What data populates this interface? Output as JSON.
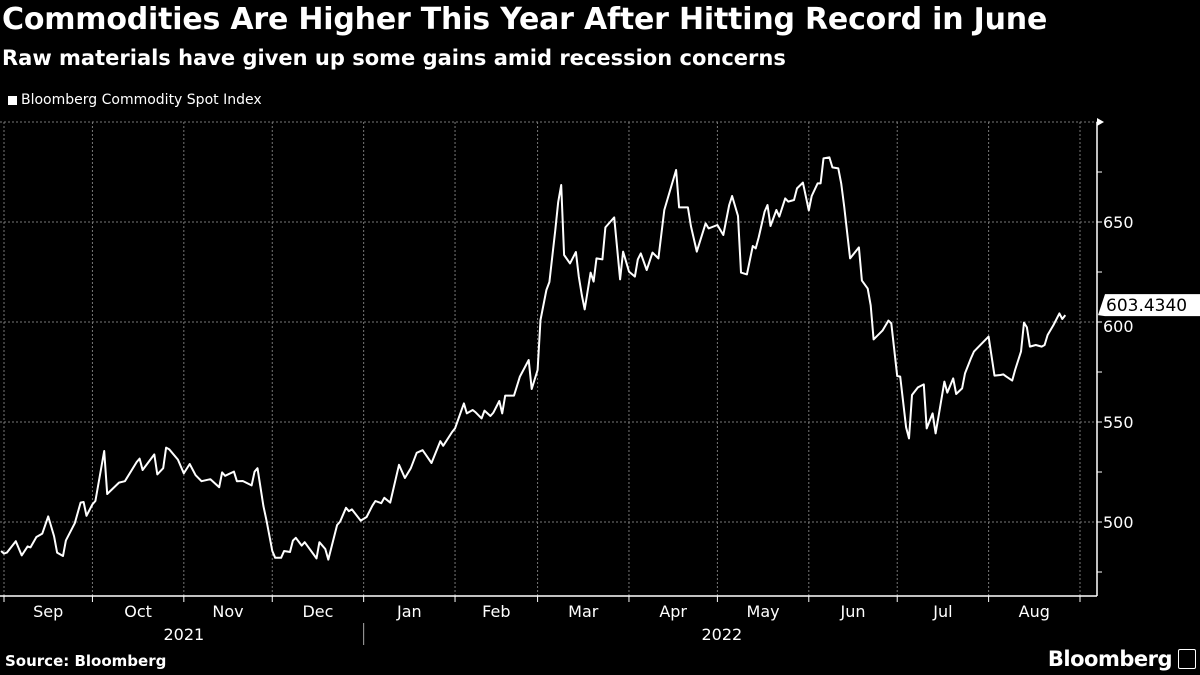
{
  "header": {
    "title": "Commodities Are Higher This Year After Hitting Record in June",
    "subtitle": "Raw materials have given up some gains amid recession concerns"
  },
  "footer": {
    "source": "Source: Bloomberg",
    "logo": "Bloomberg"
  },
  "chart_data": {
    "type": "line",
    "title": "Commodities Are Higher This Year After Hitting Record in June",
    "subtitle": "Raw materials have given up some gains amid recession concerns",
    "legend": "top-left",
    "grid": true,
    "line_color": "#ffffff",
    "background": "#000000",
    "xlim": [
      "2021-08-31",
      "2022-09-05"
    ],
    "ylim": [
      463,
      700
    ],
    "y_axis_side": "right",
    "y_ticks": [
      500,
      550,
      600,
      650
    ],
    "y_tick_labels": [
      "500",
      "550",
      "600",
      "650"
    ],
    "x_ticks": [
      "2021-09-01",
      "2021-10-01",
      "2021-11-01",
      "2021-12-01",
      "2022-01-01",
      "2022-02-01",
      "2022-03-01",
      "2022-04-01",
      "2022-05-01",
      "2022-06-01",
      "2022-07-01",
      "2022-08-01",
      "2022-09-01"
    ],
    "x_tick_labels": [
      "Sep",
      "Oct",
      "Nov",
      "Dec",
      "Jan",
      "Feb",
      "Mar",
      "Apr",
      "May",
      "Jun",
      "Jul",
      "Aug"
    ],
    "year_labels": [
      {
        "label": "2021",
        "from": "2021-09-01",
        "to": "2022-01-01"
      },
      {
        "label": "2022",
        "from": "2022-01-01",
        "to": "2022-09-01"
      }
    ],
    "last_value_label": "603.4340",
    "series": [
      {
        "name": "Bloomberg Commodity Spot Index",
        "points": [
          [
            "2021-08-31",
            485.5
          ],
          [
            "2021-09-01",
            484.2
          ],
          [
            "2021-09-02",
            484.7
          ],
          [
            "2021-09-05",
            490.4
          ],
          [
            "2021-09-07",
            483.3
          ],
          [
            "2021-09-09",
            487.8
          ],
          [
            "2021-09-10",
            487.3
          ],
          [
            "2021-09-12",
            492.5
          ],
          [
            "2021-09-14",
            494.2
          ],
          [
            "2021-09-16",
            502.8
          ],
          [
            "2021-09-18",
            492.8
          ],
          [
            "2021-09-19",
            484.7
          ],
          [
            "2021-09-21",
            483.0
          ],
          [
            "2021-09-22",
            490.8
          ],
          [
            "2021-09-25",
            499.4
          ],
          [
            "2021-09-27",
            509.7
          ],
          [
            "2021-09-28",
            510.0
          ],
          [
            "2021-09-29",
            503.1
          ],
          [
            "2021-10-01",
            508.8
          ],
          [
            "2021-10-02",
            510.5
          ],
          [
            "2021-10-05",
            535.5
          ],
          [
            "2021-10-06",
            514.0
          ],
          [
            "2021-10-10",
            519.7
          ],
          [
            "2021-10-12",
            520.4
          ],
          [
            "2021-10-16",
            530.0
          ],
          [
            "2021-10-17",
            531.7
          ],
          [
            "2021-10-18",
            526.0
          ],
          [
            "2021-10-22",
            533.8
          ],
          [
            "2021-10-23",
            523.8
          ],
          [
            "2021-10-25",
            526.9
          ],
          [
            "2021-10-26",
            537.2
          ],
          [
            "2021-10-27",
            536.4
          ],
          [
            "2021-10-30",
            531.2
          ],
          [
            "2021-11-01",
            524.3
          ],
          [
            "2021-11-03",
            529.0
          ],
          [
            "2021-11-05",
            523.4
          ],
          [
            "2021-11-07",
            520.4
          ],
          [
            "2021-11-10",
            521.4
          ],
          [
            "2021-11-13",
            517.4
          ],
          [
            "2021-11-14",
            524.8
          ],
          [
            "2021-11-15",
            523.1
          ],
          [
            "2021-11-18",
            525.2
          ],
          [
            "2021-11-19",
            520.4
          ],
          [
            "2021-11-21",
            520.5
          ],
          [
            "2021-11-24",
            518.3
          ],
          [
            "2021-11-25",
            525.2
          ],
          [
            "2021-11-26",
            526.9
          ],
          [
            "2021-11-28",
            508.0
          ],
          [
            "2021-11-29",
            501.0
          ],
          [
            "2021-12-01",
            485.5
          ],
          [
            "2021-12-02",
            482.1
          ],
          [
            "2021-12-04",
            482.1
          ],
          [
            "2021-12-05",
            485.5
          ],
          [
            "2021-12-07",
            485.0
          ],
          [
            "2021-12-08",
            490.7
          ],
          [
            "2021-12-09",
            492.1
          ],
          [
            "2021-12-11",
            488.2
          ],
          [
            "2021-12-12",
            489.9
          ],
          [
            "2021-12-16",
            481.8
          ],
          [
            "2021-12-17",
            489.9
          ],
          [
            "2021-12-19",
            486.5
          ],
          [
            "2021-12-20",
            481.2
          ],
          [
            "2021-12-23",
            498.5
          ],
          [
            "2021-12-24",
            500.2
          ],
          [
            "2021-12-26",
            507.1
          ],
          [
            "2021-12-27",
            505.4
          ],
          [
            "2021-12-28",
            506.3
          ],
          [
            "2021-12-31",
            500.7
          ],
          [
            "2022-01-02",
            502.5
          ],
          [
            "2022-01-04",
            508.3
          ],
          [
            "2022-01-05",
            510.5
          ],
          [
            "2022-01-07",
            509.4
          ],
          [
            "2022-01-08",
            512.1
          ],
          [
            "2022-01-10",
            509.7
          ],
          [
            "2022-01-13",
            528.6
          ],
          [
            "2022-01-15",
            522.0
          ],
          [
            "2022-01-17",
            526.9
          ],
          [
            "2022-01-19",
            534.6
          ],
          [
            "2022-01-21",
            535.9
          ],
          [
            "2022-01-22",
            533.8
          ],
          [
            "2022-01-24",
            529.5
          ],
          [
            "2022-01-27",
            540.4
          ],
          [
            "2022-01-28",
            538.1
          ],
          [
            "2022-01-31",
            545.0
          ],
          [
            "2022-02-01",
            546.8
          ],
          [
            "2022-02-02",
            551.0
          ],
          [
            "2022-02-04",
            559.3
          ],
          [
            "2022-02-05",
            554.3
          ],
          [
            "2022-02-07",
            556.0
          ],
          [
            "2022-02-08",
            554.8
          ],
          [
            "2022-02-10",
            551.8
          ],
          [
            "2022-02-11",
            555.7
          ],
          [
            "2022-02-13",
            553.0
          ],
          [
            "2022-02-14",
            554.7
          ],
          [
            "2022-02-16",
            560.5
          ],
          [
            "2022-02-17",
            554.3
          ],
          [
            "2022-02-18",
            563.2
          ],
          [
            "2022-02-21",
            563.2
          ],
          [
            "2022-02-23",
            572.7
          ],
          [
            "2022-02-26",
            581.0
          ],
          [
            "2022-02-27",
            566.5
          ],
          [
            "2022-03-01",
            576.0
          ],
          [
            "2022-03-02",
            601.0
          ],
          [
            "2022-03-04",
            616.0
          ],
          [
            "2022-03-05",
            620.0
          ],
          [
            "2022-03-07",
            646.0
          ],
          [
            "2022-03-08",
            660.0
          ],
          [
            "2022-03-09",
            668.5
          ],
          [
            "2022-03-10",
            633.5
          ],
          [
            "2022-03-12",
            629.3
          ],
          [
            "2022-03-14",
            635.0
          ],
          [
            "2022-03-15",
            622.7
          ],
          [
            "2022-03-16",
            613.5
          ],
          [
            "2022-03-17",
            606.3
          ],
          [
            "2022-03-19",
            624.7
          ],
          [
            "2022-03-20",
            620.2
          ],
          [
            "2022-03-21",
            631.8
          ],
          [
            "2022-03-23",
            631.3
          ],
          [
            "2022-03-24",
            647.3
          ],
          [
            "2022-03-27",
            652.3
          ],
          [
            "2022-03-29",
            621.3
          ],
          [
            "2022-03-30",
            635.2
          ],
          [
            "2022-04-01",
            625.2
          ],
          [
            "2022-04-03",
            622.7
          ],
          [
            "2022-04-04",
            631.3
          ],
          [
            "2022-04-05",
            634.3
          ],
          [
            "2022-04-07",
            626.0
          ],
          [
            "2022-04-09",
            634.7
          ],
          [
            "2022-04-11",
            631.8
          ],
          [
            "2022-04-13",
            656.0
          ],
          [
            "2022-04-17",
            676.0
          ],
          [
            "2022-04-18",
            657.3
          ],
          [
            "2022-04-21",
            657.3
          ],
          [
            "2022-04-22",
            648.0
          ],
          [
            "2022-04-24",
            635.2
          ],
          [
            "2022-04-27",
            649.3
          ],
          [
            "2022-04-28",
            646.8
          ],
          [
            "2022-05-01",
            648.5
          ],
          [
            "2022-05-03",
            643.5
          ],
          [
            "2022-05-05",
            658.5
          ],
          [
            "2022-05-06",
            663.0
          ],
          [
            "2022-05-08",
            653.0
          ],
          [
            "2022-05-09",
            624.7
          ],
          [
            "2022-05-11",
            623.8
          ],
          [
            "2022-05-13",
            638.0
          ],
          [
            "2022-05-14",
            636.8
          ],
          [
            "2022-05-15",
            642.3
          ],
          [
            "2022-05-17",
            655.2
          ],
          [
            "2022-05-18",
            658.5
          ],
          [
            "2022-05-19",
            648.0
          ],
          [
            "2022-05-21",
            656.0
          ],
          [
            "2022-05-22",
            652.7
          ],
          [
            "2022-05-24",
            661.8
          ],
          [
            "2022-05-25",
            660.2
          ],
          [
            "2022-05-27",
            661.0
          ],
          [
            "2022-05-28",
            666.8
          ],
          [
            "2022-05-30",
            669.7
          ],
          [
            "2022-06-01",
            655.8
          ],
          [
            "2022-06-02",
            663.0
          ],
          [
            "2022-06-04",
            669.3
          ],
          [
            "2022-06-05",
            669.3
          ],
          [
            "2022-06-06",
            681.8
          ],
          [
            "2022-06-08",
            682.3
          ],
          [
            "2022-06-09",
            677.3
          ],
          [
            "2022-06-11",
            676.8
          ],
          [
            "2022-06-12",
            669.3
          ],
          [
            "2022-06-13",
            657.7
          ],
          [
            "2022-06-15",
            631.8
          ],
          [
            "2022-06-18",
            637.3
          ],
          [
            "2022-06-19",
            620.7
          ],
          [
            "2022-06-21",
            616.7
          ],
          [
            "2022-06-22",
            608.3
          ],
          [
            "2022-06-23",
            591.3
          ],
          [
            "2022-06-26",
            595.7
          ],
          [
            "2022-06-28",
            600.7
          ],
          [
            "2022-06-29",
            599.3
          ],
          [
            "2022-07-01",
            573.0
          ],
          [
            "2022-07-02",
            572.7
          ],
          [
            "2022-07-04",
            547.3
          ],
          [
            "2022-07-05",
            541.8
          ],
          [
            "2022-07-06",
            563.5
          ],
          [
            "2022-07-08",
            567.3
          ],
          [
            "2022-07-10",
            568.8
          ],
          [
            "2022-07-11",
            546.8
          ],
          [
            "2022-07-13",
            554.3
          ],
          [
            "2022-07-14",
            544.3
          ],
          [
            "2022-07-15",
            552.7
          ],
          [
            "2022-07-17",
            570.2
          ],
          [
            "2022-07-18",
            564.7
          ],
          [
            "2022-07-20",
            571.8
          ],
          [
            "2022-07-21",
            564.0
          ],
          [
            "2022-07-23",
            566.8
          ],
          [
            "2022-07-24",
            574.3
          ],
          [
            "2022-07-26",
            581.8
          ],
          [
            "2022-07-27",
            585.2
          ],
          [
            "2022-08-01",
            592.7
          ],
          [
            "2022-08-03",
            573.2
          ],
          [
            "2022-08-05",
            573.5
          ],
          [
            "2022-08-06",
            573.8
          ],
          [
            "2022-08-07",
            572.7
          ],
          [
            "2022-08-09",
            570.7
          ],
          [
            "2022-08-10",
            576.0
          ],
          [
            "2022-08-12",
            585.2
          ],
          [
            "2022-08-13",
            599.7
          ],
          [
            "2022-08-14",
            597.3
          ],
          [
            "2022-08-15",
            587.7
          ],
          [
            "2022-08-17",
            588.5
          ],
          [
            "2022-08-19",
            587.7
          ],
          [
            "2022-08-20",
            588.5
          ],
          [
            "2022-08-21",
            593.5
          ],
          [
            "2022-08-23",
            598.5
          ],
          [
            "2022-08-25",
            604.3
          ],
          [
            "2022-08-26",
            601.5
          ],
          [
            "2022-08-27",
            603.434
          ]
        ]
      }
    ]
  }
}
